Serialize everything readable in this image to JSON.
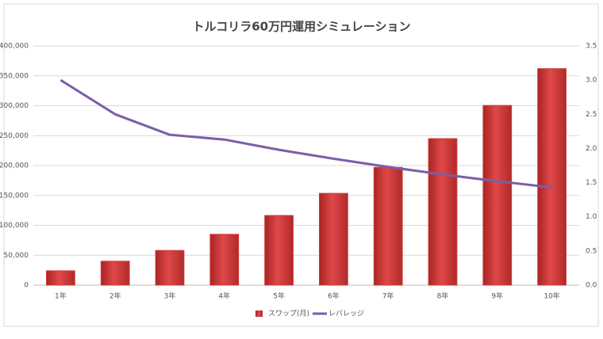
{
  "chart_data": {
    "type": "bar",
    "title": "トルコリラ60万円運用シミュレーション",
    "categories": [
      "1年",
      "2年",
      "3年",
      "4年",
      "5年",
      "6年",
      "7年",
      "8年",
      "9年",
      "10年"
    ],
    "series": [
      {
        "name": "スワップ(月)",
        "color": "#d13a3a",
        "values": [
          24000,
          40000,
          58000,
          85000,
          116500,
          153500,
          197000,
          245000,
          300500,
          362000
        ]
      },
      {
        "name": "レバレッジ",
        "color": "#7b5ea7",
        "type": "line",
        "axis": "y2",
        "values": [
          3.0,
          2.5,
          2.2,
          2.13,
          1.98,
          1.85,
          1.73,
          1.62,
          1.52,
          1.43
        ]
      }
    ],
    "ylim": [
      0,
      400000
    ],
    "yticks": [
      0,
      {
        "value": 50000,
        "label": "50,000"
      },
      {
        "value": 100000,
        "label": "100,000"
      },
      {
        "value": 150000,
        "label": "150,000"
      },
      {
        "value": 200000,
        "label": "200,000"
      },
      {
        "value": 250000,
        "label": "250,000"
      },
      {
        "value": 300000,
        "label": "300,000"
      },
      {
        "value": 350000,
        "label": "350,000"
      },
      {
        "value": 400000,
        "label": "400,000"
      }
    ],
    "y2lim": [
      0,
      3.5
    ],
    "y2ticks": [
      {
        "value": 0,
        "label": "0.0"
      },
      0.5,
      {
        "value": 1,
        "label": "1.0"
      },
      1.5,
      {
        "value": 2,
        "label": "2.0"
      },
      2.5,
      {
        "value": 3,
        "label": "3.0"
      },
      3.5
    ],
    "grid": true,
    "legend": "bottom"
  }
}
